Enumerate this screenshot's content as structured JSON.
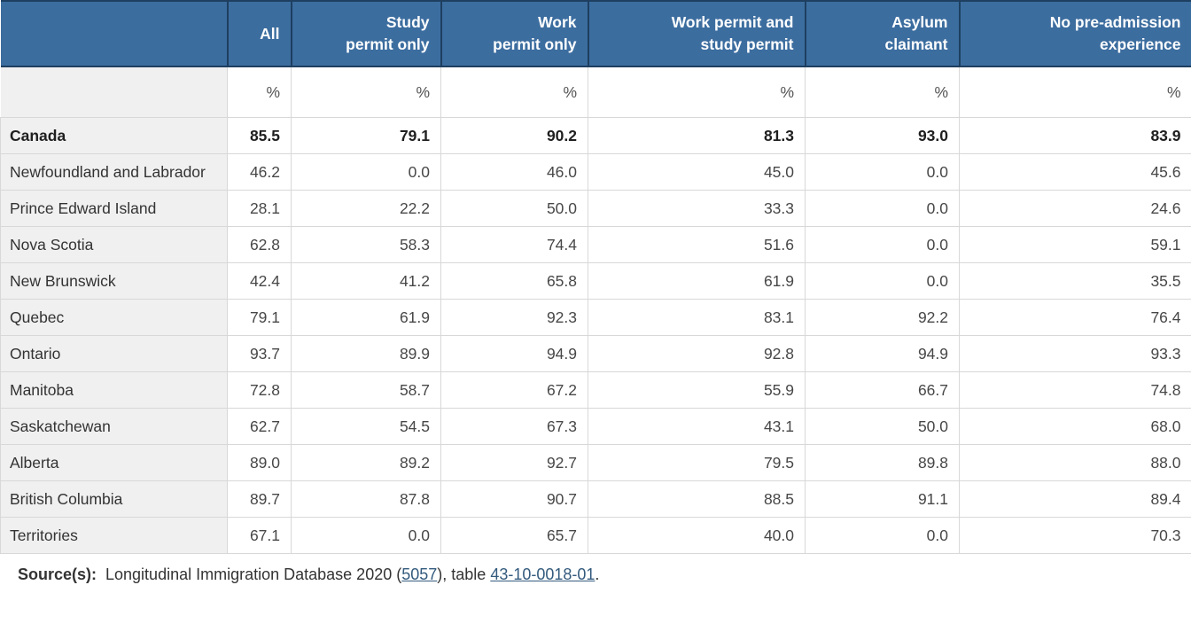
{
  "colors": {
    "header_bg": "#3c6d9f",
    "header_border": "#1e3f60",
    "rowhead_bg": "#f0f0f0",
    "grid_line": "#d8d8d8",
    "link": "#335a7d"
  },
  "chart_data": {
    "type": "table",
    "unit": "%",
    "columns": [
      {
        "id": "all",
        "label": "All"
      },
      {
        "id": "study-permit-only",
        "label": "Study\npermit only"
      },
      {
        "id": "work-permit-only",
        "label": "Work\npermit only"
      },
      {
        "id": "work-permit-and-study-permit",
        "label": "Work permit and\nstudy permit"
      },
      {
        "id": "asylum-claimant",
        "label": "Asylum\nclaimant"
      },
      {
        "id": "no-pre-admission-experience",
        "label": "No pre-admission\nexperience"
      }
    ],
    "rows": [
      {
        "label": "Canada",
        "bold": true,
        "values": [
          "85.5",
          "79.1",
          "90.2",
          "81.3",
          "93.0",
          "83.9"
        ]
      },
      {
        "label": "Newfoundland and Labrador",
        "bold": false,
        "values": [
          "46.2",
          "0.0",
          "46.0",
          "45.0",
          "0.0",
          "45.6"
        ]
      },
      {
        "label": "Prince Edward Island",
        "bold": false,
        "values": [
          "28.1",
          "22.2",
          "50.0",
          "33.3",
          "0.0",
          "24.6"
        ]
      },
      {
        "label": "Nova Scotia",
        "bold": false,
        "values": [
          "62.8",
          "58.3",
          "74.4",
          "51.6",
          "0.0",
          "59.1"
        ]
      },
      {
        "label": "New Brunswick",
        "bold": false,
        "values": [
          "42.4",
          "41.2",
          "65.8",
          "61.9",
          "0.0",
          "35.5"
        ]
      },
      {
        "label": "Quebec",
        "bold": false,
        "values": [
          "79.1",
          "61.9",
          "92.3",
          "83.1",
          "92.2",
          "76.4"
        ]
      },
      {
        "label": "Ontario",
        "bold": false,
        "values": [
          "93.7",
          "89.9",
          "94.9",
          "92.8",
          "94.9",
          "93.3"
        ]
      },
      {
        "label": "Manitoba",
        "bold": false,
        "values": [
          "72.8",
          "58.7",
          "67.2",
          "55.9",
          "66.7",
          "74.8"
        ]
      },
      {
        "label": "Saskatchewan",
        "bold": false,
        "values": [
          "62.7",
          "54.5",
          "67.3",
          "43.1",
          "50.0",
          "68.0"
        ]
      },
      {
        "label": "Alberta",
        "bold": false,
        "values": [
          "89.0",
          "89.2",
          "92.7",
          "79.5",
          "89.8",
          "88.0"
        ]
      },
      {
        "label": "British Columbia",
        "bold": false,
        "values": [
          "89.7",
          "87.8",
          "90.7",
          "88.5",
          "91.1",
          "89.4"
        ]
      },
      {
        "label": "Territories",
        "bold": false,
        "values": [
          "67.1",
          "0.0",
          "65.7",
          "40.0",
          "0.0",
          "70.3"
        ]
      }
    ]
  },
  "source": {
    "label": "Source(s):",
    "segments": [
      {
        "text": "Longitudinal Immigration Database 2020 (",
        "link": false
      },
      {
        "text": "5057",
        "link": true,
        "id": "source-link-5057"
      },
      {
        "text": "), table ",
        "link": false
      },
      {
        "text": "43-10-0018-01",
        "link": true,
        "id": "source-link-43-10-0018-01"
      },
      {
        "text": ".",
        "link": false
      }
    ]
  }
}
